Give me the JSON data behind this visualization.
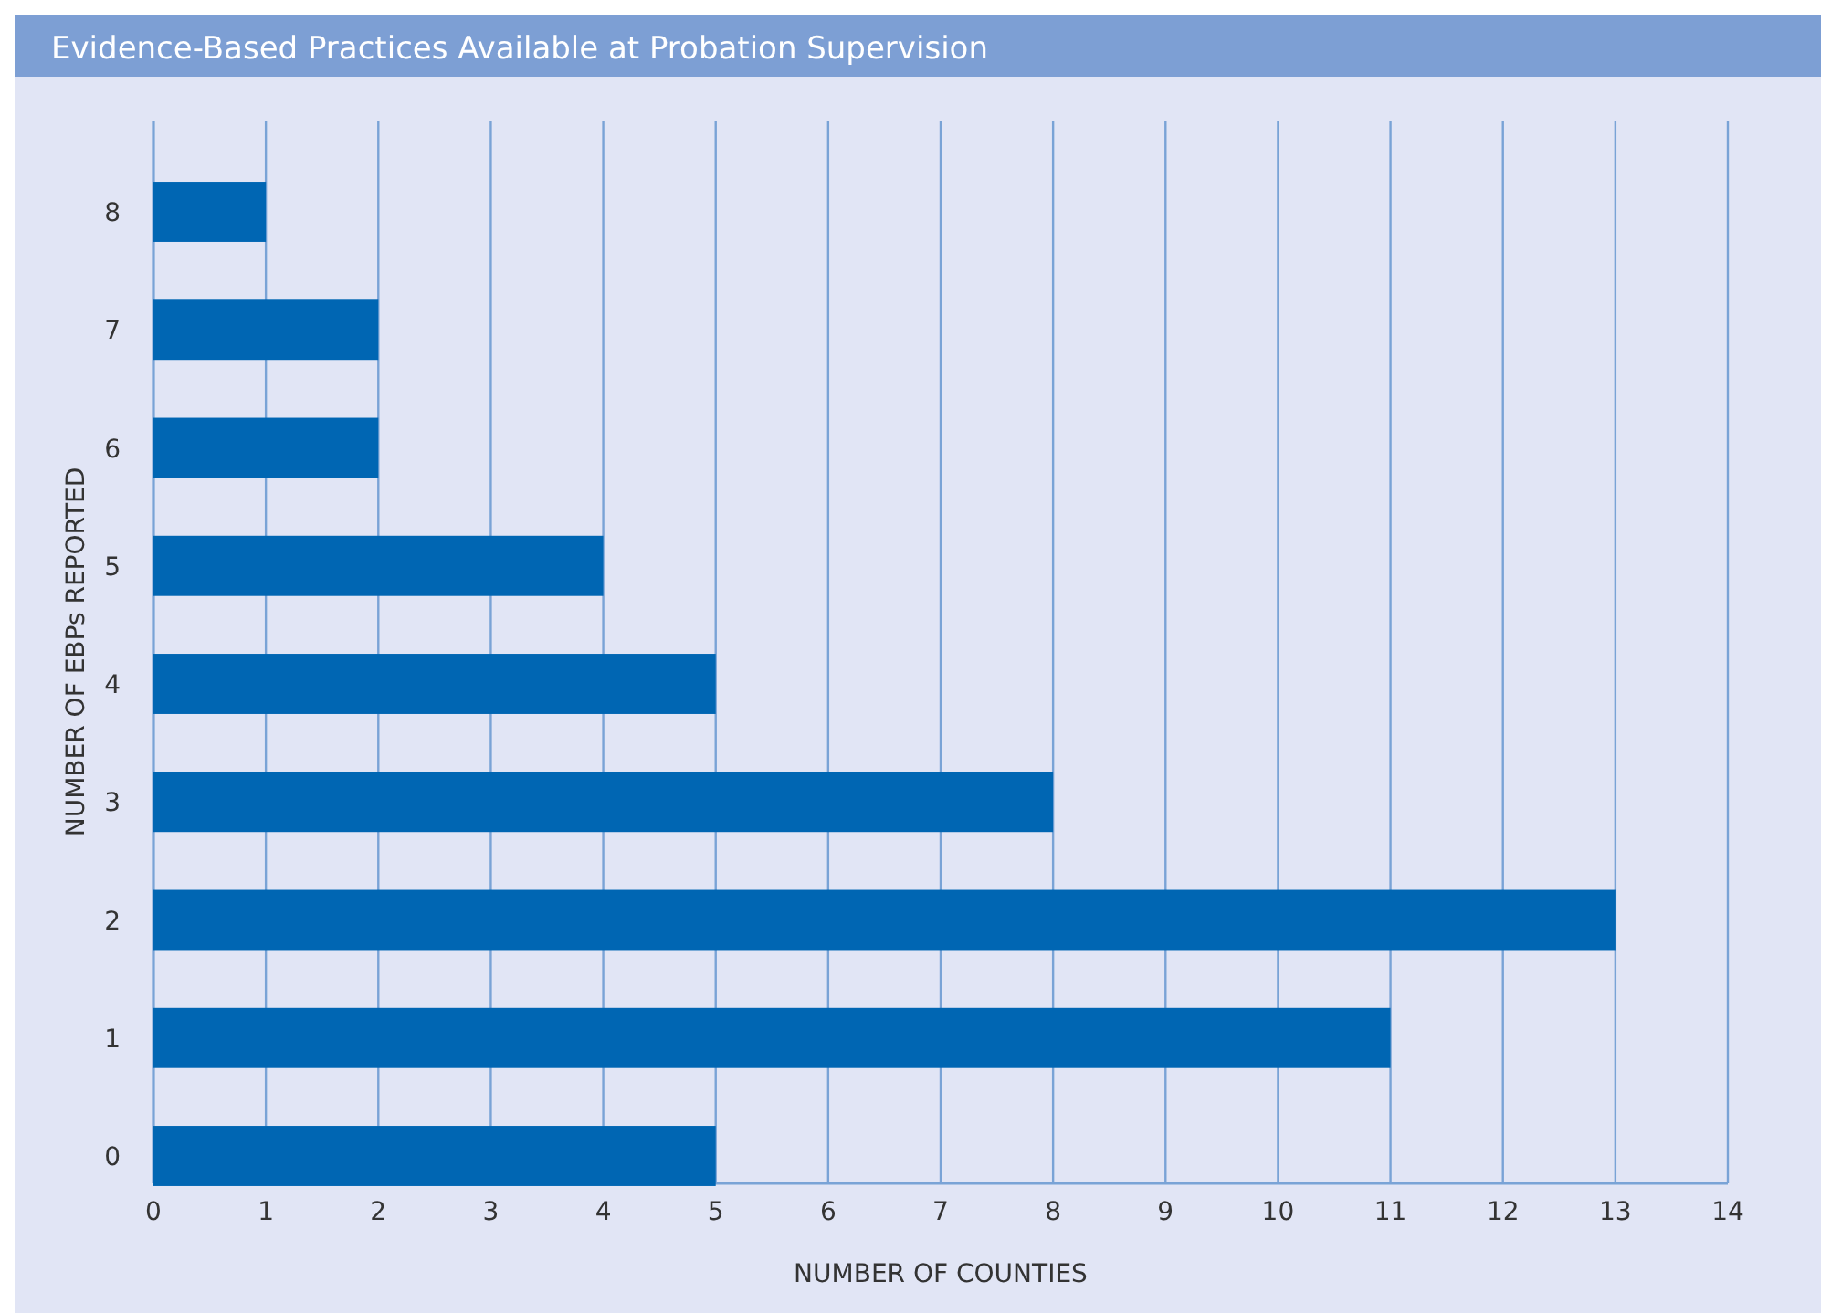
{
  "chart_data": {
    "type": "bar",
    "orientation": "horizontal",
    "title": "Evidence-Based Practices Available at Probation Supervision",
    "xlabel": "NUMBER OF COUNTIES",
    "ylabel": "NUMBER OF EBPs REPORTED",
    "categories": [
      "8",
      "7",
      "6",
      "5",
      "4",
      "3",
      "2",
      "1",
      "0"
    ],
    "values": [
      1,
      2,
      2,
      4,
      5,
      8,
      13,
      11,
      5
    ],
    "color": "#0066b3",
    "xlim": [
      0,
      14
    ],
    "xticks": [
      0,
      1,
      2,
      3,
      4,
      5,
      6,
      7,
      8,
      9,
      10,
      11,
      12,
      13,
      14
    ],
    "grid": "x"
  }
}
